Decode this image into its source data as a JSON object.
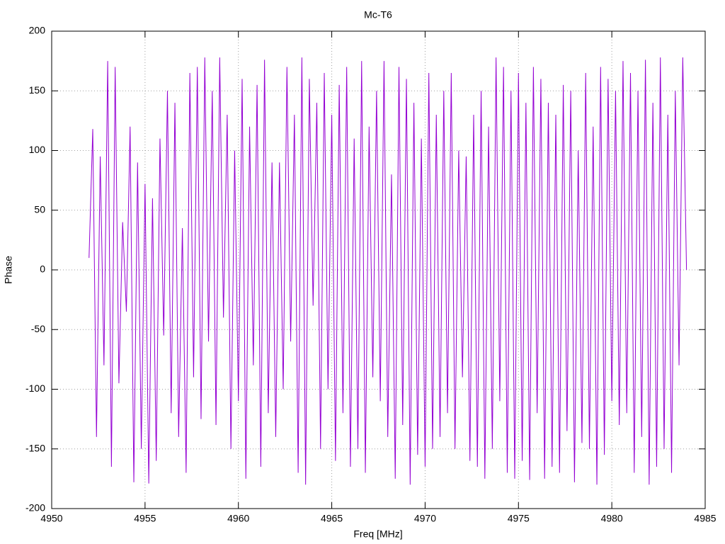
{
  "chart_data": {
    "type": "line",
    "title": "Mc-T6",
    "x_label": "Freq [MHz]",
    "y_label": "Phase",
    "xlim": [
      4950,
      4985
    ],
    "xticks": [
      4950,
      4955,
      4960,
      4965,
      4970,
      4975,
      4980,
      4985
    ],
    "ylim": [
      -200,
      200
    ],
    "yticks": [
      -200,
      -150,
      -100,
      -50,
      0,
      50,
      100,
      150,
      200
    ],
    "grid": true,
    "x": [
      4952,
      4952.2,
      4952.4,
      4952.6,
      4952.8,
      4953,
      4953.2,
      4953.4,
      4953.6,
      4953.8,
      4954,
      4954.2,
      4954.4,
      4954.6,
      4954.8,
      4955,
      4955.2,
      4955.4,
      4955.6,
      4955.8,
      4956,
      4956.2,
      4956.4,
      4956.6,
      4956.8,
      4957,
      4957.2,
      4957.4,
      4957.6,
      4957.8,
      4958,
      4958.2,
      4958.4,
      4958.6,
      4958.8,
      4959,
      4959.2,
      4959.4,
      4959.6,
      4959.8,
      4960,
      4960.2,
      4960.4,
      4960.6,
      4960.8,
      4961,
      4961.2,
      4961.4,
      4961.6,
      4961.8,
      4962,
      4962.2,
      4962.4,
      4962.6,
      4962.8,
      4963,
      4963.2,
      4963.4,
      4963.6,
      4963.8,
      4964,
      4964.2,
      4964.4,
      4964.6,
      4964.8,
      4965,
      4965.2,
      4965.4,
      4965.6,
      4965.8,
      4966,
      4966.2,
      4966.4,
      4966.6,
      4966.8,
      4967,
      4967.2,
      4967.4,
      4967.6,
      4967.8,
      4968,
      4968.2,
      4968.4,
      4968.6,
      4968.8,
      4969,
      4969.2,
      4969.4,
      4969.6,
      4969.8,
      4970,
      4970.2,
      4970.4,
      4970.6,
      4970.8,
      4971,
      4971.2,
      4971.4,
      4971.6,
      4971.8,
      4972,
      4972.2,
      4972.4,
      4972.6,
      4972.8,
      4973,
      4973.2,
      4973.4,
      4973.6,
      4973.8,
      4974,
      4974.2,
      4974.4,
      4974.6,
      4974.8,
      4975,
      4975.2,
      4975.4,
      4975.6,
      4975.8,
      4976,
      4976.2,
      4976.4,
      4976.6,
      4976.8,
      4977,
      4977.2,
      4977.4,
      4977.6,
      4977.8,
      4978,
      4978.2,
      4978.4,
      4978.6,
      4978.8,
      4979,
      4979.2,
      4979.4,
      4979.6,
      4979.8,
      4980,
      4980.2,
      4980.4,
      4980.6,
      4980.8,
      4981,
      4981.2,
      4981.4,
      4981.6,
      4981.8,
      4982,
      4982.2,
      4982.4,
      4982.6,
      4982.8,
      4983,
      4983.2,
      4983.4,
      4983.6,
      4983.8,
      4984
    ],
    "series": [
      {
        "color": "#9400d3",
        "values": [
          10,
          118,
          -140,
          95,
          -80,
          175,
          -165,
          170,
          -95,
          40,
          -35,
          120,
          -178,
          90,
          -150,
          72,
          -179,
          60,
          -160,
          110,
          -55,
          150,
          -120,
          140,
          -140,
          35,
          -170,
          165,
          -90,
          170,
          -125,
          178,
          -60,
          150,
          -130,
          178,
          -40,
          130,
          -150,
          100,
          -110,
          160,
          -175,
          120,
          -80,
          155,
          -165,
          176,
          -120,
          90,
          -140,
          90,
          -100,
          170,
          -60,
          130,
          -170,
          178,
          -180,
          160,
          -30,
          140,
          -150,
          165,
          -100,
          130,
          -160,
          155,
          -120,
          170,
          -165,
          110,
          -150,
          175,
          -170,
          120,
          -90,
          150,
          -110,
          175,
          -140,
          80,
          -175,
          170,
          -130,
          160,
          -180,
          140,
          -155,
          110,
          -165,
          165,
          -150,
          130,
          -140,
          150,
          -120,
          165,
          -150,
          100,
          -90,
          95,
          -160,
          130,
          -165,
          150,
          -175,
          120,
          -150,
          178,
          -110,
          170,
          -170,
          150,
          -175,
          165,
          -160,
          140,
          -176,
          170,
          -120,
          160,
          -175,
          140,
          -165,
          130,
          -170,
          155,
          -135,
          150,
          -178,
          100,
          -145,
          165,
          -150,
          120,
          -180,
          170,
          -155,
          160,
          -110,
          150,
          -130,
          175,
          -120,
          165,
          -170,
          150,
          -140,
          176,
          -180,
          140,
          -165,
          178,
          -150,
          130,
          -170,
          150,
          -80,
          178,
          0
        ]
      }
    ]
  }
}
